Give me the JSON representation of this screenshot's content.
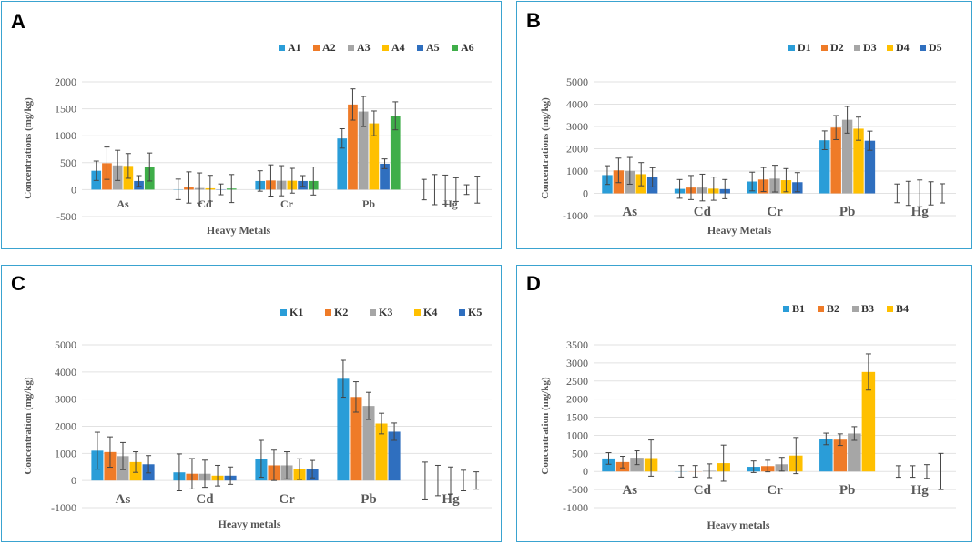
{
  "colors": {
    "panel_border": "#3aa3d0",
    "grid": "#e2e2e2",
    "axis_text": "#555555",
    "category_text": "#595959",
    "series": [
      "#2a9dd8",
      "#ef7b28",
      "#a6a6a6",
      "#ffc000",
      "#2f6fbf",
      "#3fae49"
    ]
  },
  "chart_data": [
    {
      "panel": "A",
      "type": "bar",
      "title": "",
      "xlabel": "Heavy Metals",
      "ylabel": "Concentrations (mg/kg)",
      "ylim": [
        -500,
        2000
      ],
      "yticks": [
        "-500",
        "0",
        "500",
        "1000",
        "1500",
        "2000"
      ],
      "categories": [
        "As",
        "Cd",
        "Cr",
        "Pb",
        "Hg"
      ],
      "series": [
        {
          "name": "A1",
          "values": [
            350,
            5,
            160,
            950,
            0
          ],
          "errors": [
            180,
            190,
            190,
            180,
            190
          ]
        },
        {
          "name": "A2",
          "values": [
            490,
            40,
            170,
            1580,
            0
          ],
          "errors": [
            300,
            290,
            290,
            290,
            280
          ]
        },
        {
          "name": "A3",
          "values": [
            450,
            30,
            165,
            1450,
            0
          ],
          "errors": [
            280,
            280,
            280,
            280,
            270
          ]
        },
        {
          "name": "A4",
          "values": [
            440,
            25,
            165,
            1230,
            0
          ],
          "errors": [
            230,
            240,
            230,
            230,
            220
          ]
        },
        {
          "name": "A5",
          "values": [
            160,
            5,
            160,
            480,
            0
          ],
          "errors": [
            100,
            100,
            100,
            90,
            90
          ]
        },
        {
          "name": "A6",
          "values": [
            420,
            20,
            160,
            1370,
            0
          ],
          "errors": [
            260,
            260,
            260,
            260,
            250
          ]
        }
      ]
    },
    {
      "panel": "B",
      "type": "bar",
      "title": "",
      "xlabel": "Heavy Metals",
      "ylabel": "Concentrations (mg/kg)",
      "ylim": [
        -1000,
        5000
      ],
      "yticks": [
        "-1000",
        "0",
        "1000",
        "2000",
        "3000",
        "4000",
        "5000"
      ],
      "categories": [
        "As",
        "Cd",
        "Cr",
        "Pb",
        "Hg"
      ],
      "series": [
        {
          "name": "D1",
          "values": [
            820,
            200,
            530,
            2380,
            0
          ],
          "errors": [
            420,
            420,
            420,
            420,
            420
          ]
        },
        {
          "name": "D2",
          "values": [
            1030,
            260,
            620,
            2950,
            0
          ],
          "errors": [
            550,
            540,
            540,
            540,
            540
          ]
        },
        {
          "name": "D3",
          "values": [
            1010,
            260,
            660,
            3300,
            0
          ],
          "errors": [
            600,
            600,
            600,
            600,
            600
          ]
        },
        {
          "name": "D4",
          "values": [
            860,
            210,
            590,
            2900,
            0
          ],
          "errors": [
            520,
            520,
            520,
            520,
            520
          ]
        },
        {
          "name": "D5",
          "values": [
            720,
            190,
            500,
            2360,
            0
          ],
          "errors": [
            430,
            430,
            430,
            430,
            430
          ]
        }
      ]
    },
    {
      "panel": "C",
      "type": "bar",
      "title": "",
      "xlabel": "Heavy metals",
      "ylabel": "Concentration (mg/kg)",
      "ylim": [
        -1000,
        5000
      ],
      "yticks": [
        "-1000",
        "0",
        "1000",
        "2000",
        "3000",
        "4000",
        "5000"
      ],
      "categories": [
        "As",
        "Cd",
        "Cr",
        "Pb",
        "Hg"
      ],
      "series": [
        {
          "name": "K1",
          "values": [
            1100,
            300,
            800,
            3750,
            0
          ],
          "errors": [
            680,
            680,
            680,
            680,
            680
          ]
        },
        {
          "name": "K2",
          "values": [
            1050,
            250,
            560,
            3080,
            0
          ],
          "errors": [
            560,
            560,
            560,
            560,
            560
          ]
        },
        {
          "name": "K3",
          "values": [
            900,
            250,
            560,
            2750,
            0
          ],
          "errors": [
            500,
            500,
            500,
            500,
            500
          ]
        },
        {
          "name": "K4",
          "values": [
            680,
            180,
            420,
            2100,
            0
          ],
          "errors": [
            380,
            380,
            380,
            380,
            380
          ]
        },
        {
          "name": "K5",
          "values": [
            600,
            180,
            420,
            1800,
            0
          ],
          "errors": [
            320,
            320,
            320,
            320,
            320
          ]
        }
      ]
    },
    {
      "panel": "D",
      "type": "bar",
      "title": "",
      "xlabel": "Heavy metals",
      "ylabel": "Concentration (mg/kg)",
      "ylim": [
        -1000,
        3500
      ],
      "yticks": [
        "-1000",
        "-500",
        "0",
        "500",
        "1000",
        "1500",
        "2000",
        "2500",
        "3000",
        "3500"
      ],
      "categories": [
        "As",
        "Cd",
        "Cr",
        "Pb",
        "Hg"
      ],
      "series": [
        {
          "name": "B1",
          "values": [
            360,
            5,
            130,
            900,
            0
          ],
          "errors": [
            160,
            160,
            160,
            160,
            160
          ]
        },
        {
          "name": "B2",
          "values": [
            260,
            5,
            150,
            880,
            0
          ],
          "errors": [
            160,
            160,
            160,
            160,
            160
          ]
        },
        {
          "name": "B3",
          "values": [
            380,
            20,
            200,
            1050,
            0
          ],
          "errors": [
            190,
            190,
            190,
            190,
            190
          ]
        },
        {
          "name": "B4",
          "values": [
            370,
            230,
            440,
            2750,
            0
          ],
          "errors": [
            500,
            500,
            500,
            500,
            500
          ]
        }
      ]
    }
  ]
}
